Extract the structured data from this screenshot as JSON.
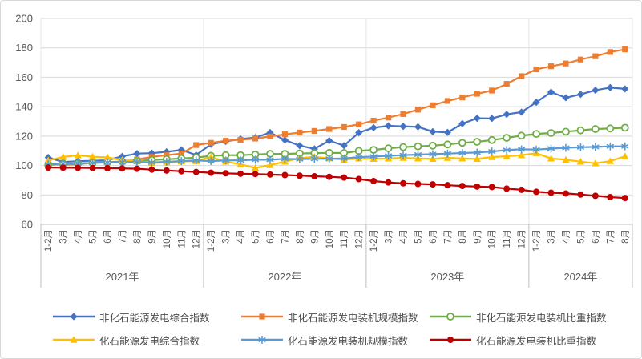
{
  "chart_data": {
    "type": "line",
    "title": "",
    "xlabel": "",
    "ylabel": "",
    "ylim": [
      60,
      200
    ],
    "y_ticks": [
      200,
      180,
      160,
      140,
      120,
      100,
      80,
      60
    ],
    "grid": "horizontal",
    "legend_position": "bottom",
    "axis_text_color": "#595959",
    "grid_color": "#d9d9d9",
    "year_groups": [
      {
        "label": "2021年",
        "months": [
          "1-2月",
          "3月",
          "4月",
          "5月",
          "6月",
          "7月",
          "8月",
          "9月",
          "10月",
          "11月",
          "12月"
        ]
      },
      {
        "label": "2022年",
        "months": [
          "1-2月",
          "3月",
          "4月",
          "5月",
          "6月",
          "7月",
          "8月",
          "9月",
          "10月",
          "11月",
          "12月"
        ]
      },
      {
        "label": "2023年",
        "months": [
          "1-2月",
          "3月",
          "4月",
          "5月",
          "6月",
          "7月",
          "8月",
          "9月",
          "10月",
          "11月",
          "12月"
        ]
      },
      {
        "label": "2024年",
        "months": [
          "1-2月",
          "3月",
          "4月",
          "5月",
          "6月",
          "7月",
          "8月"
        ]
      }
    ],
    "series": [
      {
        "name": "非化石能源发电综合指数",
        "color": "#4472C4",
        "marker": "diamond",
        "values": [
          105.4,
          102.4,
          102.9,
          103.2,
          103.6,
          106.2,
          108.1,
          108.4,
          109.3,
          110.6,
          107.1,
          114.4,
          116.4,
          118.0,
          119.0,
          122.4,
          117.3,
          113.5,
          111.3,
          116.9,
          113.5,
          122.3,
          125.7,
          127.0,
          126.6,
          126.3,
          123.0,
          122.5,
          128.5,
          132.1,
          132.0,
          134.8,
          136.3,
          143.0,
          149.9,
          146.1,
          148.4,
          151.2,
          153.0,
          152.1
        ]
      },
      {
        "name": "非化石能源发电装机规模指数",
        "color": "#ED7D31",
        "marker": "square",
        "values": [
          101.4,
          100.5,
          100.8,
          101.9,
          102.3,
          102.6,
          104.1,
          105.8,
          107.0,
          108.1,
          113.9,
          115.4,
          116.8,
          117.5,
          118.3,
          119.7,
          121.2,
          122.4,
          123.5,
          124.8,
          126.2,
          128.0,
          130.5,
          132.6,
          135.0,
          138.0,
          141.0,
          143.9,
          146.3,
          148.8,
          151.0,
          155.5,
          160.8,
          165.4,
          167.5,
          169.4,
          172.1,
          174.3,
          177.2,
          179.0
        ]
      },
      {
        "name": "非化石能源发电装机比重指数",
        "color": "#70AD47",
        "marker": "circle-open",
        "values": [
          100.4,
          100.9,
          101.3,
          101.8,
          102.2,
          102.7,
          103.2,
          103.7,
          104.2,
          104.8,
          105.4,
          106.6,
          107.0,
          107.0,
          107.5,
          107.9,
          107.9,
          108.2,
          108.4,
          108.6,
          108.5,
          109.9,
          110.6,
          111.7,
          112.5,
          113.0,
          113.5,
          114.3,
          115.4,
          116.1,
          117.3,
          118.8,
          120.3,
          121.5,
          122.1,
          123.0,
          123.9,
          124.8,
          125.2,
          125.7
        ]
      },
      {
        "name": "化石能源发电综合指数",
        "color": "#FFC000",
        "marker": "triangle",
        "values": [
          103.4,
          105.8,
          106.9,
          106.0,
          105.5,
          103.7,
          103.2,
          101.7,
          102.1,
          102.8,
          103.0,
          105.7,
          102.6,
          100.8,
          98.3,
          100.3,
          102.6,
          105.0,
          105.9,
          104.8,
          103.9,
          104.8,
          104.5,
          104.8,
          105.2,
          104.8,
          104.5,
          105.2,
          104.8,
          104.5,
          105.7,
          106.3,
          107.0,
          108.4,
          104.8,
          103.9,
          102.6,
          101.5,
          103.0,
          106.3
        ]
      },
      {
        "name": "化石能源发电装机规模指数",
        "color": "#5B9BD5",
        "marker": "asterisk",
        "values": [
          100.8,
          101.2,
          101.5,
          101.8,
          102.0,
          102.2,
          102.4,
          102.1,
          102.5,
          103.0,
          103.4,
          103.0,
          103.4,
          103.5,
          103.9,
          103.9,
          104.5,
          104.3,
          104.5,
          104.6,
          104.8,
          105.7,
          106.1,
          106.6,
          107.0,
          107.4,
          107.7,
          108.1,
          108.5,
          108.8,
          109.5,
          110.5,
          111.0,
          110.8,
          111.5,
          112.0,
          112.4,
          112.6,
          113.0,
          113.0
        ]
      },
      {
        "name": "化石能源发电装机比重指数",
        "color": "#C00000",
        "marker": "circle",
        "values": [
          98.6,
          98.5,
          98.4,
          98.3,
          98.2,
          98.0,
          97.8,
          97.2,
          96.6,
          96.1,
          95.6,
          95.1,
          94.7,
          94.4,
          94.2,
          93.9,
          93.5,
          93.1,
          92.7,
          92.3,
          91.8,
          90.8,
          89.4,
          88.5,
          87.9,
          87.5,
          87.2,
          86.6,
          86.1,
          85.7,
          85.4,
          84.3,
          83.5,
          82.1,
          81.5,
          81.0,
          80.3,
          79.4,
          78.5,
          77.9
        ]
      }
    ]
  }
}
